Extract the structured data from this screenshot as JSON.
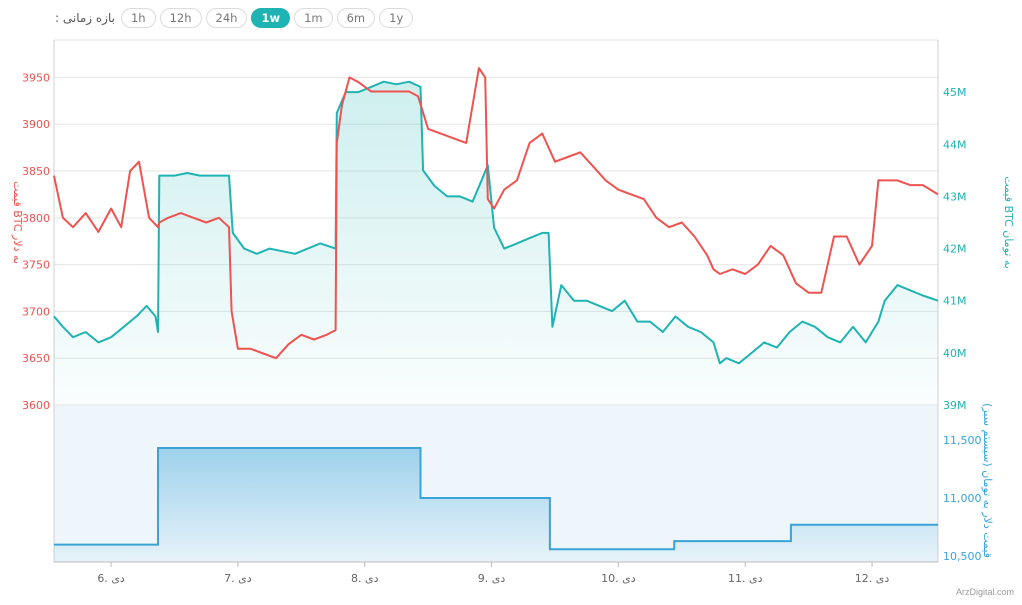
{
  "toolbar": {
    "label": "بازه زمانی :",
    "buttons": [
      "1h",
      "12h",
      "24h",
      "1w",
      "1m",
      "6m",
      "1y"
    ],
    "active": "1w"
  },
  "watermark": "ArzDigital.com",
  "colors": {
    "usd": "#ef5350",
    "irr": "#1fb3b3",
    "rate": "#3aa3d8",
    "grid": "#e6e6e6"
  },
  "chart_data": [
    {
      "type": "line",
      "title": "",
      "x_ticks": [
        6,
        7,
        8,
        9,
        10,
        11,
        12
      ],
      "x_tick_labels": [
        "6. دی",
        "7. دی",
        "8. دی",
        "9. دی",
        "10. دی",
        "11. دی",
        "12. دی"
      ],
      "xlim": [
        5.55,
        12.52
      ],
      "left_axis": {
        "label": "قیمت BTC به دلار",
        "ylim": [
          3600,
          3990
        ],
        "ticks": [
          3600,
          3650,
          3700,
          3750,
          3800,
          3850,
          3900,
          3950
        ]
      },
      "right_axis": {
        "label": "قیمت BTC به تومان",
        "ylim": [
          39000000,
          46000000
        ],
        "ticks": [
          39000000,
          40000000,
          41000000,
          42000000,
          43000000,
          44000000,
          45000000
        ],
        "tick_labels": [
          "39M",
          "40M",
          "41M",
          "42M",
          "43M",
          "44M",
          "45M"
        ]
      },
      "series": [
        {
          "name": "قیمت BTC به دلار",
          "axis": "left",
          "x": [
            5.55,
            5.62,
            5.7,
            5.8,
            5.9,
            6.0,
            6.08,
            6.15,
            6.22,
            6.3,
            6.37,
            6.38,
            6.45,
            6.55,
            6.65,
            6.75,
            6.85,
            6.93,
            6.95,
            7.0,
            7.1,
            7.2,
            7.3,
            7.4,
            7.5,
            7.6,
            7.7,
            7.77,
            7.78,
            7.82,
            7.88,
            7.95,
            8.05,
            8.15,
            8.25,
            8.35,
            8.42,
            8.5,
            8.6,
            8.7,
            8.8,
            8.9,
            8.95,
            8.97,
            9.02,
            9.1,
            9.2,
            9.3,
            9.4,
            9.45,
            9.5,
            9.6,
            9.7,
            9.8,
            9.9,
            10.0,
            10.1,
            10.2,
            10.3,
            10.4,
            10.5,
            10.6,
            10.7,
            10.75,
            10.8,
            10.9,
            11.0,
            11.1,
            11.2,
            11.3,
            11.4,
            11.5,
            11.6,
            11.7,
            11.8,
            11.9,
            12.0,
            12.05,
            12.1,
            12.2,
            12.3,
            12.4,
            12.52
          ],
          "values": [
            3845,
            3800,
            3790,
            3805,
            3785,
            3810,
            3790,
            3850,
            3860,
            3800,
            3790,
            3795,
            3800,
            3805,
            3800,
            3795,
            3800,
            3790,
            3700,
            3660,
            3660,
            3655,
            3650,
            3665,
            3675,
            3670,
            3675,
            3680,
            3880,
            3920,
            3950,
            3945,
            3935,
            3935,
            3935,
            3935,
            3930,
            3895,
            3890,
            3885,
            3880,
            3960,
            3950,
            3820,
            3810,
            3830,
            3840,
            3880,
            3890,
            3875,
            3860,
            3865,
            3870,
            3855,
            3840,
            3830,
            3825,
            3820,
            3800,
            3790,
            3795,
            3780,
            3760,
            3745,
            3740,
            3745,
            3740,
            3750,
            3770,
            3760,
            3730,
            3720,
            3720,
            3780,
            3780,
            3750,
            3770,
            3840,
            3840,
            3840,
            3835,
            3835,
            3825
          ]
        },
        {
          "name": "قیمت BTC به تومان",
          "axis": "right",
          "x": [
            5.55,
            5.62,
            5.7,
            5.8,
            5.9,
            6.0,
            6.1,
            6.2,
            6.28,
            6.35,
            6.37,
            6.38,
            6.5,
            6.6,
            6.7,
            6.85,
            6.93,
            6.96,
            7.05,
            7.15,
            7.25,
            7.35,
            7.45,
            7.55,
            7.65,
            7.77,
            7.78,
            7.85,
            7.95,
            8.05,
            8.15,
            8.25,
            8.35,
            8.44,
            8.46,
            8.55,
            8.65,
            8.75,
            8.85,
            8.92,
            8.97,
            9.02,
            9.1,
            9.2,
            9.3,
            9.4,
            9.45,
            9.48,
            9.55,
            9.65,
            9.75,
            9.85,
            9.95,
            10.05,
            10.15,
            10.25,
            10.35,
            10.45,
            10.55,
            10.65,
            10.75,
            10.8,
            10.85,
            10.95,
            11.05,
            11.15,
            11.25,
            11.35,
            11.45,
            11.55,
            11.65,
            11.75,
            11.85,
            11.95,
            12.0,
            12.05,
            12.1,
            12.2,
            12.3,
            12.4,
            12.52
          ],
          "values": [
            40700000,
            40500000,
            40300000,
            40400000,
            40200000,
            40300000,
            40500000,
            40700000,
            40900000,
            40700000,
            40400000,
            43400000,
            43400000,
            43450000,
            43400000,
            43400000,
            43400000,
            42300000,
            42000000,
            41900000,
            42000000,
            41950000,
            41900000,
            42000000,
            42100000,
            42000000,
            44600000,
            45000000,
            45000000,
            45100000,
            45200000,
            45150000,
            45200000,
            45100000,
            43500000,
            43200000,
            43000000,
            43000000,
            42900000,
            43300000,
            43600000,
            42400000,
            42000000,
            42100000,
            42200000,
            42300000,
            42300000,
            40500000,
            41300000,
            41000000,
            41000000,
            40900000,
            40800000,
            41000000,
            40600000,
            40600000,
            40400000,
            40700000,
            40500000,
            40400000,
            40200000,
            39800000,
            39900000,
            39800000,
            40000000,
            40200000,
            40100000,
            40400000,
            40600000,
            40500000,
            40300000,
            40200000,
            40500000,
            40200000,
            40400000,
            40600000,
            41000000,
            41300000,
            41200000,
            41100000,
            41000000
          ]
        }
      ]
    },
    {
      "type": "line",
      "title": "",
      "right_axis": {
        "label": "قیمت دلار به تومان (سیستم سبز)",
        "ylim": [
          10450,
          11800
        ],
        "ticks": [
          10500,
          11000,
          11500
        ],
        "tick_labels": [
          "10,500",
          "11,000",
          "11,500"
        ]
      },
      "series": [
        {
          "name": "قیمت دلار به تومان (سیستم سبز)",
          "axis": "right",
          "step": true,
          "x": [
            5.55,
            6.37,
            8.44,
            9.46,
            10.44,
            11.36,
            12.52
          ],
          "values": [
            10600,
            11430,
            11000,
            10560,
            10630,
            10770,
            10770
          ]
        }
      ]
    }
  ]
}
